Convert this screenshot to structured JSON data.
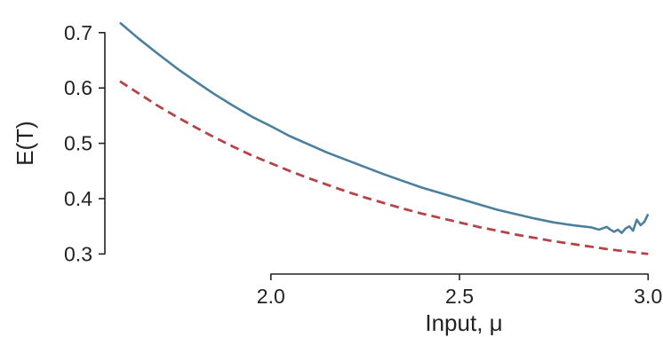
{
  "chart_data": {
    "type": "line",
    "xlabel": "Input, μ",
    "ylabel": "E(T)",
    "xlim": [
      1.56,
      3.03
    ],
    "ylim": [
      0.283,
      0.743
    ],
    "x_ticks": [
      2.0,
      2.5,
      3.0
    ],
    "y_ticks": [
      0.3,
      0.4,
      0.5,
      0.6,
      0.7
    ],
    "x_tick_labels": [
      "2.0",
      "2.5",
      "3.0"
    ],
    "y_tick_labels": [
      "0.3",
      "0.4",
      "0.5",
      "0.6",
      "0.7"
    ],
    "grid": false,
    "colors": {
      "solid": "#4a7f9e",
      "dashed": "#b5434a",
      "axis": "#222222"
    },
    "series": [
      {
        "style": "solid",
        "x": [
          1.6,
          1.65,
          1.7,
          1.75,
          1.8,
          1.85,
          1.9,
          1.95,
          2.0,
          2.05,
          2.1,
          2.15,
          2.2,
          2.25,
          2.3,
          2.35,
          2.4,
          2.45,
          2.5,
          2.55,
          2.6,
          2.65,
          2.7,
          2.75,
          2.8,
          2.85,
          2.87,
          2.89,
          2.9,
          2.91,
          2.92,
          2.93,
          2.94,
          2.95,
          2.96,
          2.97,
          2.98,
          2.99,
          3.0
        ],
        "y": [
          0.718,
          0.689,
          0.662,
          0.636,
          0.612,
          0.589,
          0.568,
          0.548,
          0.531,
          0.513,
          0.498,
          0.483,
          0.47,
          0.457,
          0.444,
          0.432,
          0.42,
          0.41,
          0.4,
          0.39,
          0.38,
          0.372,
          0.364,
          0.357,
          0.352,
          0.348,
          0.344,
          0.349,
          0.344,
          0.34,
          0.344,
          0.338,
          0.346,
          0.35,
          0.342,
          0.362,
          0.352,
          0.358,
          0.372
        ]
      },
      {
        "style": "dashed",
        "x": [
          1.6,
          1.65,
          1.7,
          1.75,
          1.8,
          1.85,
          1.9,
          1.95,
          2.0,
          2.05,
          2.1,
          2.15,
          2.2,
          2.25,
          2.3,
          2.35,
          2.4,
          2.45,
          2.5,
          2.55,
          2.6,
          2.65,
          2.7,
          2.75,
          2.8,
          2.85,
          2.9,
          2.95,
          3.0
        ],
        "y": [
          0.612,
          0.59,
          0.568,
          0.548,
          0.529,
          0.511,
          0.494,
          0.478,
          0.464,
          0.45,
          0.437,
          0.425,
          0.413,
          0.402,
          0.392,
          0.382,
          0.373,
          0.365,
          0.357,
          0.349,
          0.342,
          0.335,
          0.329,
          0.323,
          0.318,
          0.313,
          0.308,
          0.304,
          0.3
        ]
      }
    ]
  }
}
